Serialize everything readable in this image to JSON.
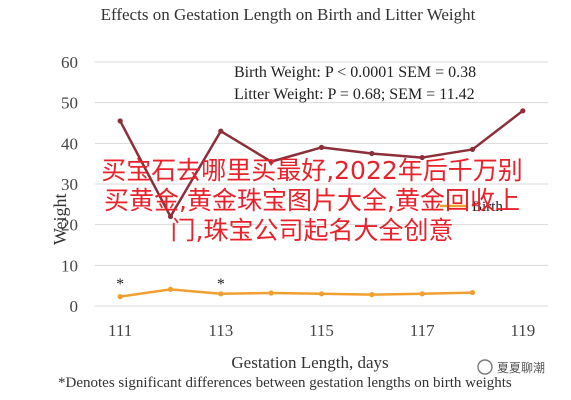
{
  "chart_data": {
    "type": "line",
    "title": "Effects on Gestation Length on Birth and Litter Weight",
    "xlabel": "Gestation Length, days",
    "ylabel": "Weight",
    "x": [
      111,
      112,
      113,
      114,
      115,
      116,
      117,
      118,
      119
    ],
    "ylim": [
      0,
      60
    ],
    "yticks": [
      0,
      10,
      20,
      30,
      40,
      50,
      60
    ],
    "grid": true,
    "series": [
      {
        "name": "Litter Weight",
        "color": "#8B2F3A",
        "values": [
          45.5,
          22,
          43,
          35.5,
          39,
          37.5,
          36.5,
          38.5,
          48
        ]
      },
      {
        "name": "Birth Weight",
        "color": "#F0A030",
        "values": [
          2.3,
          4.1,
          3.0,
          3.2,
          3.0,
          2.8,
          3.0,
          3.3,
          null
        ]
      }
    ],
    "legend": {
      "position": "right",
      "partial_text": "Birth"
    },
    "stats": [
      "Birth Weight: P < 0.0001 SEM = 0.38",
      "Litter Weight: P = 0.68; SEM = 11.42"
    ],
    "significance_markers": [
      {
        "x": 111,
        "label": "*"
      },
      {
        "x": 113,
        "label": "*"
      }
    ],
    "footnote": "*Denotes significant differences between gestation lengths on birth weights"
  },
  "overlay": {
    "text": "买宝石去哪里买最好,2022年后千万别买黄金,黄金珠宝图片大全,黄金回收上门,珠宝公司起名大全创意",
    "color": "#E8222B"
  },
  "watermark": {
    "text": "夏夏聊潮"
  }
}
